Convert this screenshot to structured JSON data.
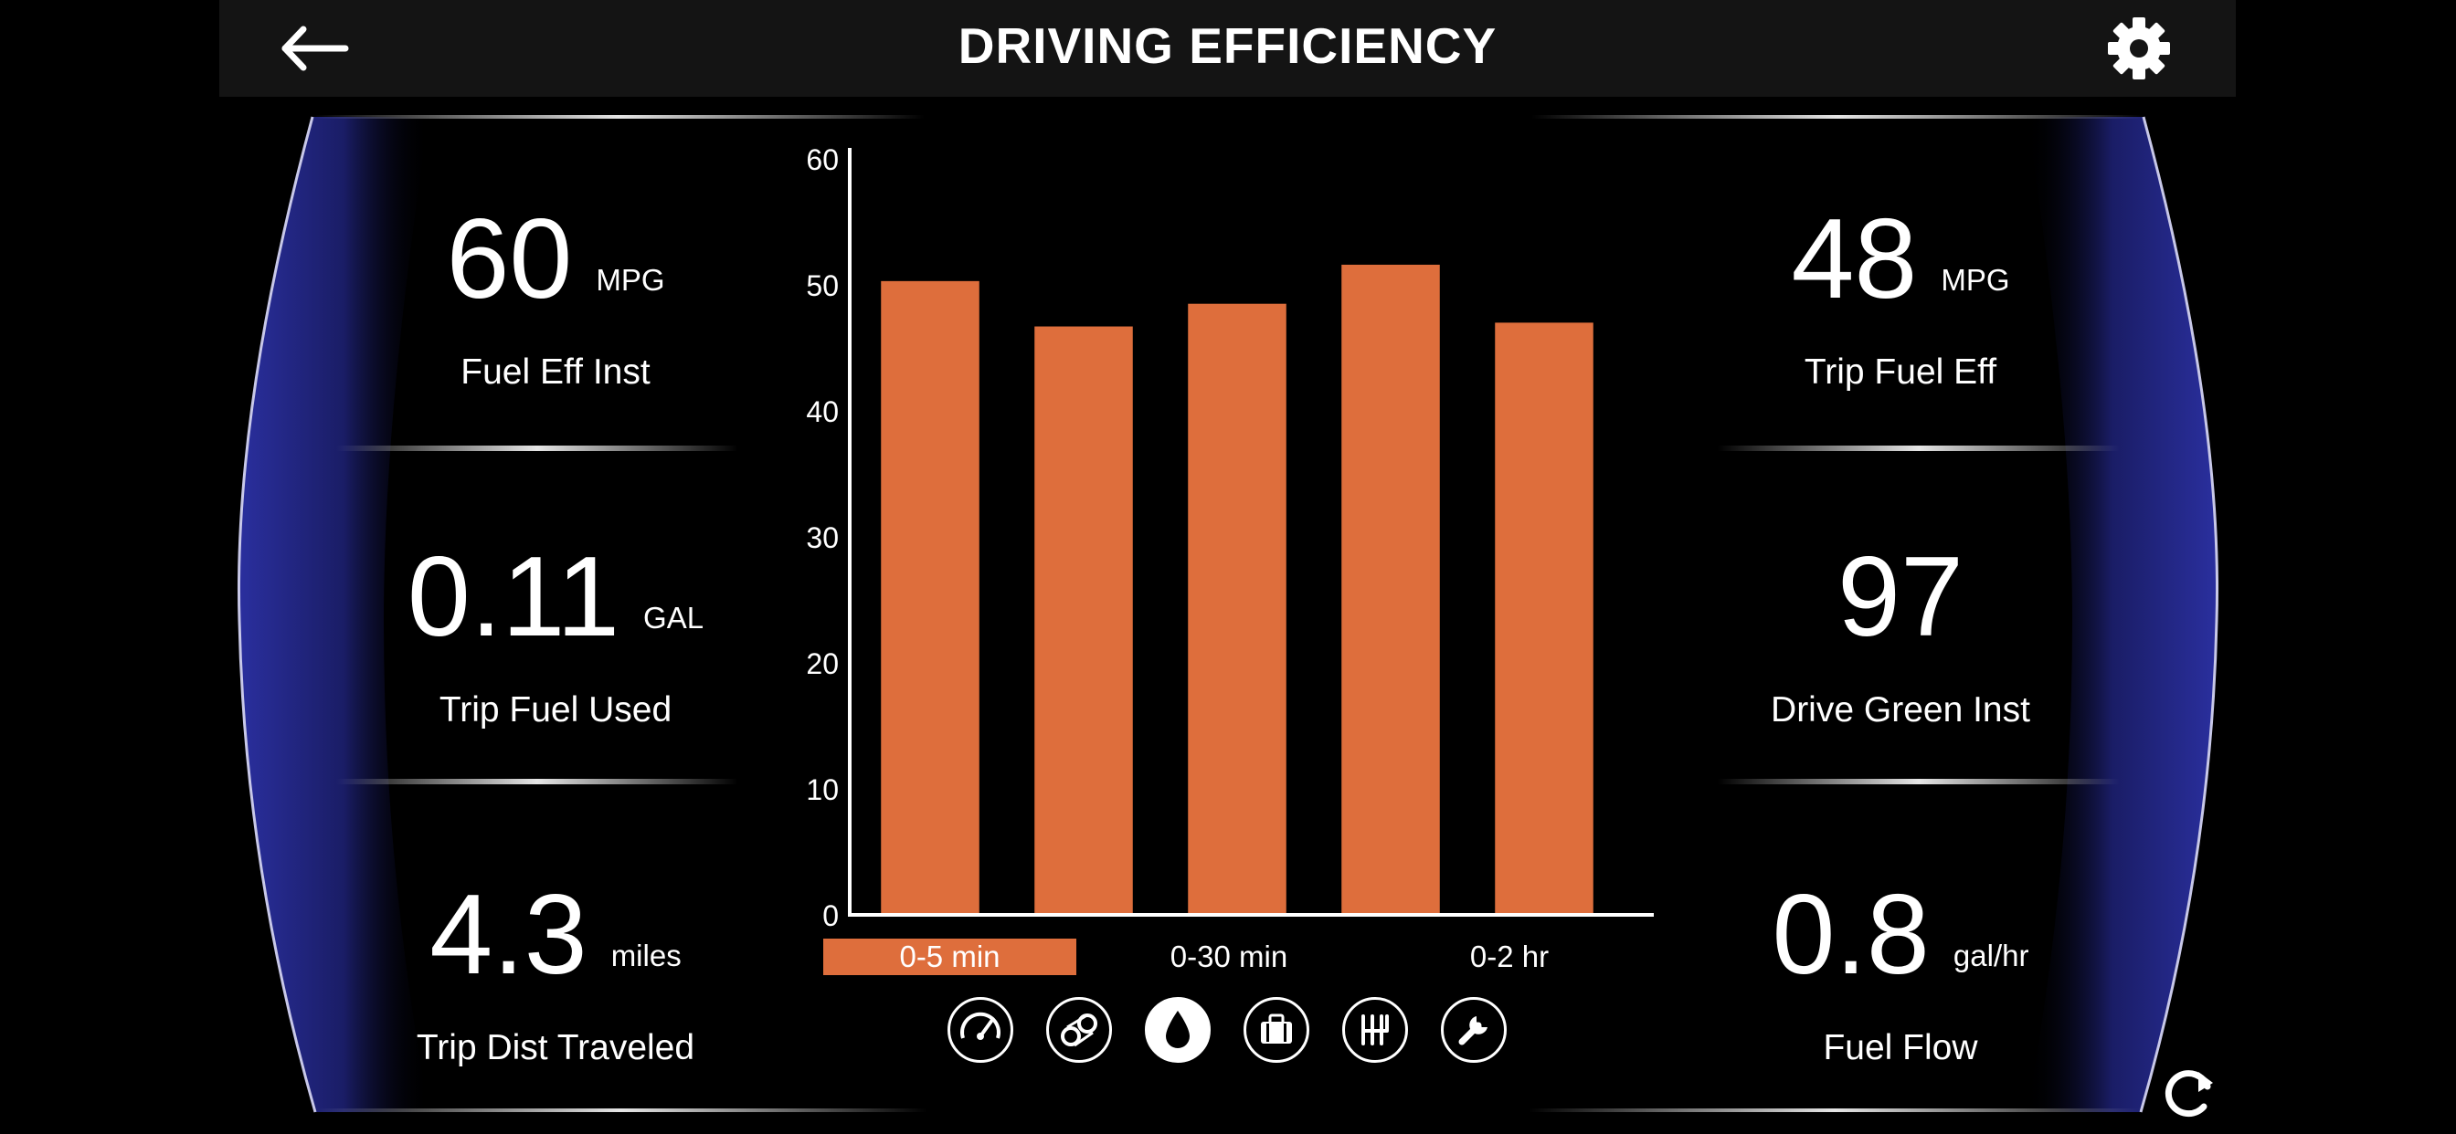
{
  "header": {
    "title": "DRIVING EFFICIENCY",
    "back_icon": "back-arrow-icon",
    "settings_icon": "gear-icon"
  },
  "left_metrics": [
    {
      "value": "60",
      "unit": "MPG",
      "label": "Fuel Eff Inst"
    },
    {
      "value": "0.11",
      "unit": "GAL",
      "label": "Trip Fuel Used"
    },
    {
      "value": "4.3",
      "unit": "miles",
      "label": "Trip Dist Traveled"
    }
  ],
  "right_metrics": [
    {
      "value": "48",
      "unit": "MPG",
      "label": "Trip Fuel Eff"
    },
    {
      "value": "97",
      "unit": "",
      "label": "Drive Green Inst"
    },
    {
      "value": "0.8",
      "unit": "gal/hr",
      "label": "Fuel Flow"
    }
  ],
  "chart_data": {
    "type": "bar",
    "values": [
      50.3,
      46.7,
      48.5,
      51.6,
      47.0
    ],
    "ylim": [
      0,
      60
    ],
    "yticks": [
      "0",
      "10",
      "20",
      "30",
      "40",
      "50",
      "60"
    ],
    "bar_color": "#de6e3c"
  },
  "time_tabs": {
    "items": [
      "0-5 min",
      "0-30 min",
      "0-2 hr"
    ],
    "active_index": 0
  },
  "bottom_icons": {
    "items": [
      "speedometer-icon",
      "engine-gears-icon",
      "fuel-drop-icon",
      "briefcase-icon",
      "gear-shift-icon",
      "wrench-icon"
    ],
    "active_index": 2
  },
  "refresh_icon": "refresh-icon",
  "colors": {
    "accent": "#de6e3c",
    "frame_blue": "#2a2f9e",
    "header_bg": "#141414"
  }
}
